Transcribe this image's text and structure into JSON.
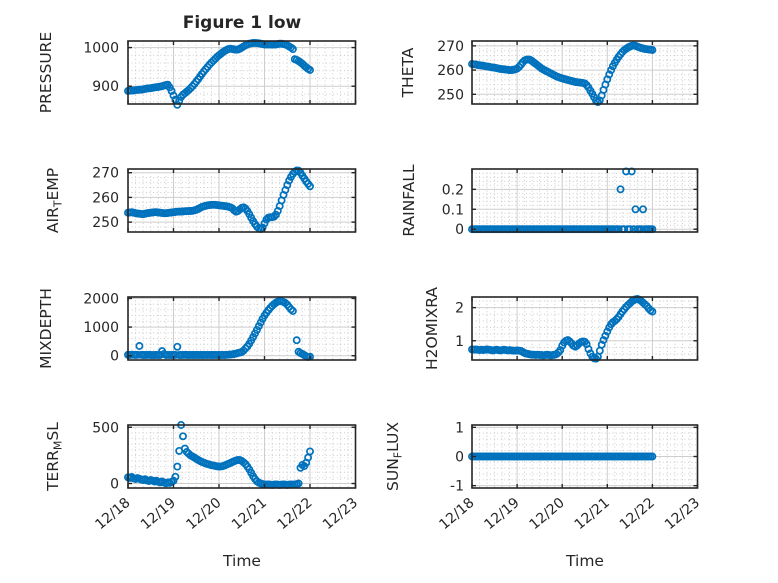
{
  "figure": {
    "title": "Figure 1 low",
    "xlabel": "Time"
  },
  "style": {
    "marker_color": "#0072BD",
    "axis_color": "#262626",
    "major_grid_color": "#cdcdcd",
    "minor_grid_color": "#c6c6c6",
    "background": "#ffffff",
    "text_color": "#262626"
  },
  "time_axis": {
    "tick_labels": [
      "12/18",
      "12/19",
      "12/20",
      "12/21",
      "12/22",
      "12/23"
    ],
    "tick_positions": [
      0,
      1,
      2,
      3,
      4,
      5
    ],
    "units": "days from 12/18"
  },
  "chart_data": [
    {
      "type": "scatter",
      "name": "PRESSURE",
      "row": 0,
      "col": 0,
      "label_parts": [
        {
          "text": "PRESSURE"
        }
      ],
      "ylim": [
        854,
        1017
      ],
      "yticks": [
        900,
        1000
      ],
      "ytick_labels": [
        "900",
        "1000"
      ],
      "yminor": 20,
      "t_start": 0,
      "dt": 0.0416667,
      "values": [
        888,
        888.5,
        889,
        889,
        890,
        890.5,
        891,
        891,
        892,
        893,
        894,
        894.5,
        895,
        896,
        897,
        897.5,
        898,
        899,
        900,
        901.5,
        903,
        904,
        897,
        888,
        876,
        865,
        852,
        862,
        872,
        878,
        882,
        886,
        890,
        895,
        900,
        906,
        912,
        918,
        925,
        932,
        938,
        944,
        950,
        956,
        961,
        966,
        971,
        976,
        980,
        984,
        988,
        991,
        994,
        996,
        997,
        996,
        995,
        994.5,
        995,
        997,
        1000,
        1003,
        1006,
        1008,
        1010,
        1011,
        1012,
        1012,
        1011.5,
        1011,
        1010,
        1009,
        1008,
        1008,
        1008,
        1008,
        1008,
        1008,
        1008,
        1009,
        1010,
        1010,
        1009,
        1008,
        1006,
        1003,
        1000,
        996,
        970,
        968,
        965,
        962,
        958,
        953,
        949,
        945,
        942
      ]
    },
    {
      "type": "scatter",
      "name": "THETA",
      "row": 0,
      "col": 1,
      "label_parts": [
        {
          "text": "THETA"
        }
      ],
      "ylim": [
        246,
        272
      ],
      "yticks": [
        250,
        260,
        270
      ],
      "ytick_labels": [
        "250",
        "260",
        "270"
      ],
      "yminor": 2,
      "t_start": 0,
      "dt": 0.0416667,
      "values": [
        262.5,
        262.4,
        262.3,
        262.1,
        262,
        261.9,
        261.8,
        261.6,
        261.5,
        261.4,
        261.2,
        261.1,
        261,
        260.8,
        260.7,
        260.5,
        260.4,
        260.3,
        260.2,
        260.1,
        260,
        260,
        260.1,
        260.3,
        260.6,
        261.3,
        262.2,
        263.2,
        264,
        264.3,
        264.4,
        264.2,
        263.7,
        263.1,
        262.5,
        261.9,
        261.3,
        260.7,
        260.2,
        259.8,
        259.4,
        259,
        258.6,
        258.2,
        257.8,
        257.4,
        257.1,
        256.8,
        256.6,
        256.3,
        256.1,
        255.9,
        255.7,
        255.5,
        255.3,
        255.1,
        255,
        254.9,
        254.8,
        254.7,
        254.5,
        253.8,
        252.8,
        251.5,
        250.2,
        248.8,
        247.4,
        246.8,
        247.5,
        249.5,
        251.8,
        254,
        256.2,
        258.2,
        260,
        261.6,
        263,
        264.3,
        265.5,
        266.5,
        267.4,
        268.2,
        268.8,
        269.3,
        269.7,
        270,
        270.1,
        270,
        269.7,
        269.4,
        269.1,
        268.9,
        268.7,
        268.6,
        268.5,
        268.4,
        268.3
      ]
    },
    {
      "type": "scatter",
      "name": "AIR_TEMP",
      "row": 1,
      "col": 0,
      "label_parts": [
        {
          "text": "AIR"
        },
        {
          "text": "T",
          "sub": true
        },
        {
          "text": "EMP"
        }
      ],
      "ylim": [
        246,
        271.5
      ],
      "yticks": [
        250,
        260,
        270
      ],
      "ytick_labels": [
        "250",
        "260",
        "270"
      ],
      "yminor": 2,
      "t_start": 0,
      "dt": 0.0416667,
      "values": [
        253.8,
        253.9,
        254,
        253.8,
        253.6,
        253.5,
        253.4,
        253.3,
        253.2,
        253.4,
        253.6,
        253.7,
        253.8,
        253.9,
        254,
        254,
        253.9,
        253.8,
        253.7,
        253.6,
        253.6,
        253.7,
        253.8,
        253.9,
        254,
        254.1,
        254.2,
        254.2,
        254.3,
        254.3,
        254.4,
        254.4,
        254.5,
        254.5,
        254.6,
        254.8,
        255,
        255.3,
        255.7,
        256.1,
        256.4,
        256.6,
        256.8,
        256.9,
        257,
        257,
        257,
        256.9,
        256.8,
        256.7,
        256.6,
        256.5,
        256.4,
        256.2,
        256,
        255.6,
        254.8,
        254.2,
        254.5,
        255.2,
        255.8,
        256,
        255.5,
        254.5,
        253.2,
        251.8,
        250.4,
        249.2,
        248.2,
        247.5,
        247.2,
        247.8,
        249.5,
        251,
        251.8,
        252,
        252,
        252.2,
        253,
        254.5,
        256.5,
        258.8,
        261,
        263,
        265,
        266.8,
        268.3,
        269.5,
        270.4,
        270.9,
        270.8,
        270,
        268.8,
        267.6,
        266.5,
        265.5,
        264.5
      ]
    },
    {
      "type": "scatter",
      "name": "RAINFALL",
      "row": 1,
      "col": 1,
      "label_parts": [
        {
          "text": "RAINFALL"
        }
      ],
      "ylim": [
        -0.014,
        0.302
      ],
      "yticks": [
        0,
        0.1,
        0.2
      ],
      "ytick_labels": [
        "0",
        "0.1",
        "0.2"
      ],
      "yminor": 0.02,
      "t_start": 0,
      "dt": 0.0416667,
      "values": [
        0,
        0,
        0,
        0,
        0,
        0,
        0,
        0,
        0,
        0,
        0,
        0,
        0,
        0,
        0,
        0,
        0,
        0,
        0,
        0,
        0,
        0,
        0,
        0,
        0,
        0,
        0,
        0,
        0,
        0,
        0,
        0,
        0,
        0,
        0,
        0,
        0,
        0,
        0,
        0,
        0,
        0,
        0,
        0,
        0,
        0,
        0,
        0,
        0,
        0,
        0,
        0,
        0,
        0,
        0,
        0,
        0,
        0,
        0,
        0,
        0,
        0,
        0,
        0,
        0,
        0,
        0,
        0,
        0,
        0,
        0,
        0,
        0,
        0,
        0,
        0,
        0,
        0,
        0,
        0.2,
        0,
        0,
        0.29,
        0,
        0,
        0.29,
        0,
        0.1,
        0,
        0,
        0,
        0.1,
        0,
        0,
        0,
        0,
        0
      ]
    },
    {
      "type": "scatter",
      "name": "MIXDEPTH",
      "row": 2,
      "col": 0,
      "label_parts": [
        {
          "text": "MIXDEPTH"
        }
      ],
      "ylim": [
        -150,
        2050
      ],
      "yticks": [
        0,
        1000,
        2000
      ],
      "ytick_labels": [
        "0",
        "1000",
        "2000"
      ],
      "yminor": 200,
      "t_start": 0,
      "dt": 0.0416667,
      "values": [
        30,
        25,
        35,
        30,
        28,
        32,
        340,
        30,
        26,
        24,
        28,
        30,
        25,
        22,
        26,
        28,
        24,
        26,
        160,
        60,
        25,
        28,
        24,
        26,
        30,
        28,
        310,
        26,
        24,
        28,
        30,
        26,
        25,
        27,
        24,
        26,
        28,
        25,
        27,
        24,
        26,
        28,
        25,
        27,
        24,
        26,
        28,
        25,
        27,
        25,
        28,
        26,
        30,
        35,
        40,
        50,
        60,
        75,
        95,
        110,
        130,
        180,
        250,
        320,
        420,
        530,
        650,
        780,
        900,
        1030,
        1160,
        1290,
        1400,
        1500,
        1590,
        1670,
        1740,
        1800,
        1850,
        1890,
        1910,
        1900,
        1880,
        1840,
        1780,
        1700,
        1620,
        1560,
        null,
        540,
        140,
        90,
        60,
        20,
        -20,
        -45,
        -35
      ]
    },
    {
      "type": "scatter",
      "name": "H2OMIXRA",
      "row": 2,
      "col": 1,
      "label_parts": [
        {
          "text": "H2OMIXRA"
        }
      ],
      "ylim": [
        0.42,
        2.32
      ],
      "yticks": [
        1,
        2
      ],
      "ytick_labels": [
        "1",
        "2"
      ],
      "yminor": 0.2,
      "t_start": 0,
      "dt": 0.0416667,
      "values": [
        0.74,
        0.73,
        0.74,
        0.73,
        0.72,
        0.73,
        0.72,
        0.73,
        0.74,
        0.73,
        0.72,
        0.71,
        0.72,
        0.73,
        0.72,
        0.71,
        0.72,
        0.73,
        0.72,
        0.71,
        0.72,
        0.71,
        0.7,
        0.7,
        0.71,
        0.7,
        0.69,
        0.66,
        0.63,
        0.61,
        0.6,
        0.59,
        0.58,
        0.58,
        0.57,
        0.58,
        0.57,
        0.57,
        0.56,
        0.57,
        0.58,
        0.57,
        0.56,
        0.57,
        0.58,
        0.6,
        0.65,
        0.72,
        0.85,
        0.95,
        1,
        1.02,
        0.98,
        0.92,
        0.85,
        0.82,
        0.86,
        0.92,
        0.96,
        0.98,
        0.97,
        0.9,
        0.75,
        0.62,
        0.52,
        0.47,
        0.46,
        0.52,
        0.7,
        0.88,
        1.02,
        1.15,
        1.28,
        1.4,
        1.5,
        1.56,
        1.6,
        1.65,
        1.72,
        1.8,
        1.88,
        1.95,
        2.02,
        2.08,
        2.13,
        2.18,
        2.22,
        2.25,
        2.26,
        2.24,
        2.2,
        2.15,
        2.1,
        2.05,
        1.98,
        1.92,
        1.88
      ]
    },
    {
      "type": "scatter",
      "name": "TERR_MSL",
      "row": 3,
      "col": 0,
      "label_parts": [
        {
          "text": "TERR"
        },
        {
          "text": "M",
          "sub": true
        },
        {
          "text": "SL"
        }
      ],
      "ylim": [
        -40,
        520
      ],
      "yticks": [
        0,
        500
      ],
      "ytick_labels": [
        "0",
        "500"
      ],
      "yminor": 50,
      "t_start": 0,
      "dt": 0.0416667,
      "values": [
        55,
        50,
        58,
        45,
        40,
        48,
        42,
        35,
        30,
        38,
        28,
        22,
        30,
        25,
        18,
        25,
        15,
        10,
        18,
        8,
        2,
        10,
        5,
        15,
        25,
        60,
        150,
        290,
        520,
        420,
        310,
        280,
        265,
        250,
        240,
        230,
        220,
        210,
        200,
        192,
        185,
        178,
        172,
        168,
        163,
        160,
        156,
        153,
        150,
        152,
        155,
        160,
        168,
        175,
        183,
        190,
        198,
        205,
        210,
        208,
        200,
        188,
        172,
        150,
        125,
        95,
        65,
        40,
        20,
        8,
        0,
        -5,
        -8,
        -10,
        -8,
        -10,
        -12,
        -10,
        -8,
        -10,
        -12,
        -10,
        -8,
        -10,
        -12,
        -10,
        -8,
        -10,
        -8,
        -5,
        0,
        140,
        165,
        155,
        185,
        230,
        285
      ]
    },
    {
      "type": "scatter",
      "name": "SUN_FLUX",
      "row": 3,
      "col": 1,
      "label_parts": [
        {
          "text": "SUN"
        },
        {
          "text": "F",
          "sub": true
        },
        {
          "text": "LUX"
        }
      ],
      "ylim": [
        -1.08,
        1.08
      ],
      "yticks": [
        -1,
        0,
        1
      ],
      "ytick_labels": [
        "-1",
        "0",
        "1"
      ],
      "yminor": 0.2,
      "t_start": 0,
      "dt": 0.0416667,
      "values": [
        0,
        0,
        0,
        0,
        0,
        0,
        0,
        0,
        0,
        0,
        0,
        0,
        0,
        0,
        0,
        0,
        0,
        0,
        0,
        0,
        0,
        0,
        0,
        0,
        0,
        0,
        0,
        0,
        0,
        0,
        0,
        0,
        0,
        0,
        0,
        0,
        0,
        0,
        0,
        0,
        0,
        0,
        0,
        0,
        0,
        0,
        0,
        0,
        0,
        0,
        0,
        0,
        0,
        0,
        0,
        0,
        0,
        0,
        0,
        0,
        0,
        0,
        0,
        0,
        0,
        0,
        0,
        0,
        0,
        0,
        0,
        0,
        0,
        0,
        0,
        0,
        0,
        0,
        0,
        0,
        0,
        0,
        0,
        0,
        0,
        0,
        0,
        0,
        0,
        0,
        0,
        0,
        0,
        0,
        0,
        0,
        0
      ]
    }
  ]
}
